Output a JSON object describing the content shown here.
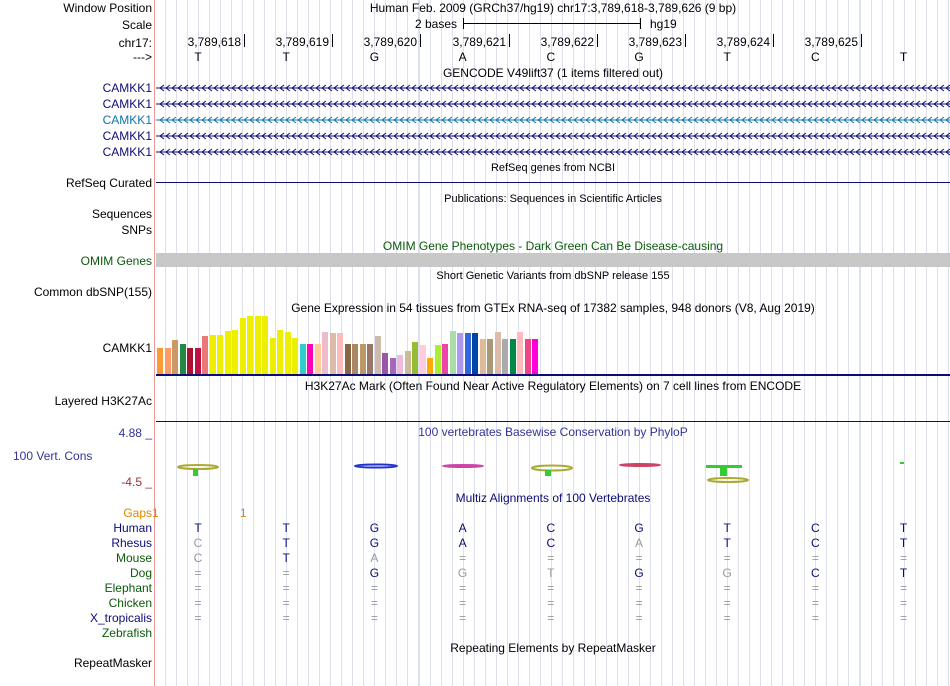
{
  "header": {
    "window_position_label": "Window Position",
    "window_position_value": "Human Feb. 2009 (GRCh37/hg19)   chr17:3,789,618-3,789,626 (9 bp)",
    "scale_label": "Scale",
    "scale_value": "2 bases",
    "scale_db": "hg19",
    "chrom_label": "chr17:",
    "strand_label": "--->",
    "positions": [
      "3,789,618",
      "3,789,619",
      "3,789,620",
      "3,789,621",
      "3,789,622",
      "3,789,623",
      "3,789,624",
      "3,789,625"
    ],
    "bases": [
      "T",
      "T",
      "G",
      "A",
      "C",
      "G",
      "T",
      "C",
      "T"
    ]
  },
  "gencode": {
    "title": "GENCODE V49lift37 (1 items filtered out)",
    "items": [
      {
        "label": "CAMKK1",
        "color": "#0c0c78"
      },
      {
        "label": "CAMKK1",
        "color": "#0c0c78"
      },
      {
        "label": "CAMKK1",
        "color": "#0c75ab"
      },
      {
        "label": "CAMKK1",
        "color": "#0c0c78"
      },
      {
        "label": "CAMKK1",
        "color": "#0c0c78"
      }
    ]
  },
  "refseq": {
    "title": "RefSeq genes from NCBI",
    "label": "RefSeq Curated",
    "color": "#0c0c78"
  },
  "pubs": {
    "title": "Publications: Sequences in Scientific Articles",
    "label1": "Sequences",
    "label2": "SNPs"
  },
  "omim": {
    "title": "OMIM Gene Phenotypes - Dark Green Can Be Disease-causing",
    "label": "OMIM Genes",
    "color": "#0a5a0a"
  },
  "dbsnp": {
    "title": "Short Genetic Variants from dbSNP release 155",
    "label": "Common dbSNP(155)"
  },
  "gtex": {
    "title": "Gene Expression in 54 tissues from GTEx RNA-seq of 17382 samples, 948 donors (V8, Aug 2019)",
    "label": "CAMKK1",
    "bars": [
      {
        "v": 0.45,
        "c": "#ff9933"
      },
      {
        "v": 0.45,
        "c": "#ff9966"
      },
      {
        "v": 0.58,
        "c": "#cc9966"
      },
      {
        "v": 0.52,
        "c": "#228844"
      },
      {
        "v": 0.45,
        "c": "#aa1133"
      },
      {
        "v": 0.45,
        "c": "#bb1144"
      },
      {
        "v": 0.66,
        "c": "#ee7777"
      },
      {
        "v": 0.68,
        "c": "#eeee00"
      },
      {
        "v": 0.68,
        "c": "#eeee00"
      },
      {
        "v": 0.74,
        "c": "#eeee00"
      },
      {
        "v": 0.76,
        "c": "#eeee00"
      },
      {
        "v": 0.97,
        "c": "#eeee00"
      },
      {
        "v": 1.0,
        "c": "#eeee00"
      },
      {
        "v": 1.0,
        "c": "#eeee00"
      },
      {
        "v": 1.0,
        "c": "#eeee00"
      },
      {
        "v": 0.62,
        "c": "#eeee00"
      },
      {
        "v": 0.76,
        "c": "#eeee00"
      },
      {
        "v": 0.72,
        "c": "#eeee00"
      },
      {
        "v": 0.62,
        "c": "#eeee00"
      },
      {
        "v": 0.52,
        "c": "#33cccc"
      },
      {
        "v": 0.52,
        "c": "#ff00bb"
      },
      {
        "v": 0.52,
        "c": "#ffcc99"
      },
      {
        "v": 0.72,
        "c": "#eebbcc"
      },
      {
        "v": 0.7,
        "c": "#ddbbaa"
      },
      {
        "v": 0.7,
        "c": "#ffbbbb"
      },
      {
        "v": 0.52,
        "c": "#886644"
      },
      {
        "v": 0.52,
        "c": "#aa8866"
      },
      {
        "v": 0.52,
        "c": "#bb9966"
      },
      {
        "v": 0.52,
        "c": "#997766"
      },
      {
        "v": 0.66,
        "c": "#ccbbaa"
      },
      {
        "v": 0.36,
        "c": "#9955aa"
      },
      {
        "v": 0.28,
        "c": "#aa66bb"
      },
      {
        "v": 0.32,
        "c": "#eebbdd"
      },
      {
        "v": 0.4,
        "c": "#ccbb99"
      },
      {
        "v": 0.56,
        "c": "#99bb33"
      },
      {
        "v": 0.5,
        "c": "#ffccdd"
      },
      {
        "v": 0.28,
        "c": "#ffaa00"
      },
      {
        "v": 0.5,
        "c": "#aaee33"
      },
      {
        "v": 0.52,
        "c": "#ee44aa"
      },
      {
        "v": 0.74,
        "c": "#aaddaa"
      },
      {
        "v": 0.7,
        "c": "#aa99ee"
      },
      {
        "v": 0.7,
        "c": "#3366dd"
      },
      {
        "v": 0.7,
        "c": "#0044aa"
      },
      {
        "v": 0.6,
        "c": "#ddbb99"
      },
      {
        "v": 0.6,
        "c": "#aa9977"
      },
      {
        "v": 0.72,
        "c": "#ddbbaa"
      },
      {
        "v": 0.6,
        "c": "#aaaaaa"
      },
      {
        "v": 0.6,
        "c": "#008844"
      },
      {
        "v": 0.72,
        "c": "#ffbbbb"
      },
      {
        "v": 0.6,
        "c": "#ee4488"
      },
      {
        "v": 0.6,
        "c": "#ff00dd"
      }
    ]
  },
  "h3k27ac": {
    "title": "H3K27Ac Mark (Often Found Near Active Regulatory Elements) on 7 cell lines from ENCODE",
    "label": "Layered H3K27Ac"
  },
  "phylop": {
    "title": "100 vertebrates Basewise Conservation by PhyloP",
    "label": "100 Vert. Cons",
    "max": "4.88 _",
    "min": "-4.5 _",
    "color": "#333399",
    "min_color": "#993333"
  },
  "multiz": {
    "title": "Multiz Alignments of 100 Vertebrates",
    "gaps_label": "Gaps",
    "gaps_values": [
      "1",
      "1"
    ],
    "gaps_color": "#dd8800",
    "species": [
      {
        "name": "Human",
        "color": "#0c0c78",
        "bases": [
          "T",
          "T",
          "G",
          "A",
          "C",
          "G",
          "T",
          "C",
          "T"
        ],
        "dim": [
          false,
          false,
          false,
          false,
          false,
          false,
          false,
          false,
          false
        ]
      },
      {
        "name": "Rhesus",
        "color": "#0c0c78",
        "bases": [
          "C",
          "T",
          "G",
          "A",
          "C",
          "A",
          "T",
          "C",
          "T"
        ],
        "dim": [
          true,
          false,
          false,
          false,
          false,
          true,
          false,
          false,
          false
        ]
      },
      {
        "name": "Mouse",
        "color": "#0a5a0a",
        "bases": [
          "C",
          "T",
          "A",
          "=",
          "=",
          "=",
          "=",
          "=",
          "="
        ],
        "dim": [
          true,
          false,
          true,
          true,
          true,
          true,
          true,
          true,
          true
        ]
      },
      {
        "name": "Dog",
        "color": "#0a5a0a",
        "bases": [
          "=",
          "=",
          "G",
          "G",
          "T",
          "G",
          "G",
          "C",
          "T"
        ],
        "dim": [
          true,
          true,
          false,
          true,
          true,
          false,
          true,
          false,
          false
        ]
      },
      {
        "name": "Elephant",
        "color": "#0a5a0a",
        "bases": [
          "=",
          "=",
          "=",
          "=",
          "=",
          "=",
          "=",
          "=",
          "="
        ],
        "dim": [
          true,
          true,
          true,
          true,
          true,
          true,
          true,
          true,
          true
        ]
      },
      {
        "name": "Chicken",
        "color": "#0a5a0a",
        "bases": [
          "=",
          "=",
          "=",
          "=",
          "=",
          "=",
          "=",
          "=",
          "="
        ],
        "dim": [
          true,
          true,
          true,
          true,
          true,
          true,
          true,
          true,
          true
        ]
      },
      {
        "name": "X_tropicalis",
        "color": "#0c0c78",
        "bases": [
          "=",
          "=",
          "=",
          "=",
          "=",
          "=",
          "=",
          "=",
          "="
        ],
        "dim": [
          true,
          true,
          true,
          true,
          true,
          true,
          true,
          true,
          true
        ]
      },
      {
        "name": "Zebrafish",
        "color": "#0a5a0a",
        "bases": [
          "",
          "",
          "",
          "",
          "",
          "",
          "",
          "",
          ""
        ],
        "dim": [
          false,
          false,
          false,
          false,
          false,
          false,
          false,
          false,
          false
        ]
      }
    ]
  },
  "rmsk": {
    "title": "Repeating Elements by RepeatMasker",
    "label": "RepeatMasker"
  }
}
